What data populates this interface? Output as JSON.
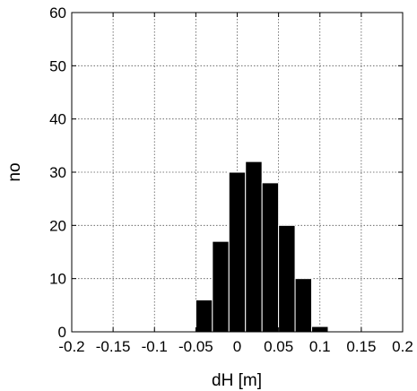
{
  "chart_data": {
    "type": "bar",
    "title": "",
    "xlabel": "dH [m]",
    "ylabel": "no",
    "xlim": [
      -0.2,
      0.2
    ],
    "ylim": [
      0,
      60
    ],
    "xticks": [
      -0.2,
      -0.15,
      -0.1,
      -0.05,
      0,
      0.05,
      0.1,
      0.15,
      0.2
    ],
    "xtick_labels": [
      "-0.2",
      "-0.15",
      "-0.1",
      "-0.05",
      "0",
      "0.05",
      "0.1",
      "0.15",
      "0.2"
    ],
    "yticks": [
      0,
      10,
      20,
      30,
      40,
      50,
      60
    ],
    "ytick_labels": [
      "0",
      "10",
      "20",
      "30",
      "40",
      "50",
      "60"
    ],
    "grid": true,
    "bin_width": 0.02,
    "bars": [
      {
        "x": -0.04,
        "value": 6
      },
      {
        "x": -0.02,
        "value": 17
      },
      {
        "x": 0.0,
        "value": 30
      },
      {
        "x": 0.02,
        "value": 32
      },
      {
        "x": 0.04,
        "value": 28
      },
      {
        "x": 0.06,
        "value": 20
      },
      {
        "x": 0.08,
        "value": 10
      },
      {
        "x": 0.1,
        "value": 1
      }
    ],
    "bar_color": "#000000",
    "edge_color": "#ffffff"
  }
}
